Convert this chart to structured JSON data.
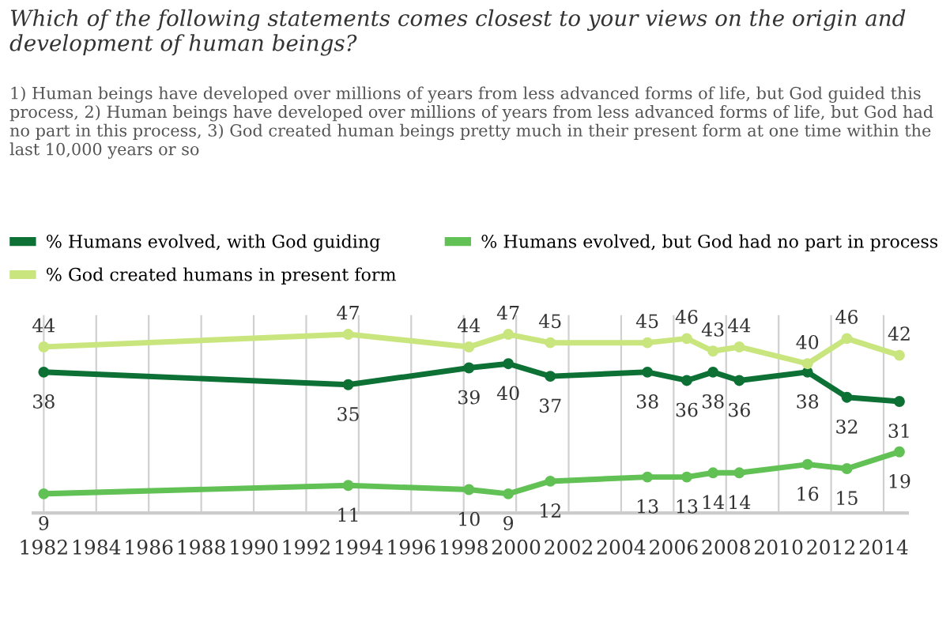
{
  "chart_data": {
    "type": "line",
    "title": "Which of the following statements comes closest to your views on the origin and development of human beings?",
    "subtitle": "1) Human beings have developed over millions of years from less advanced forms of life, but God guided this process, 2) Human beings have developed over millions of years from less advanced forms of life, but God had no part in this process, 3) God created human beings pretty much in their present form at one time within the last 10,000 years or so",
    "x": [
      1982.0,
      1993.6,
      1998.2,
      1999.7,
      2001.3,
      2005.0,
      2006.5,
      2007.5,
      2008.5,
      2011.1,
      2012.6,
      2014.6
    ],
    "series": [
      {
        "name": "% Humans evolved, with God guiding",
        "color": "#0d7034",
        "values": [
          38,
          35,
          39,
          40,
          37,
          38,
          36,
          38,
          36,
          38,
          32,
          31
        ]
      },
      {
        "name": "% Humans evolved, but God had no part in process",
        "color": "#62c155",
        "values": [
          9,
          11,
          10,
          9,
          12,
          13,
          13,
          14,
          14,
          16,
          15,
          19
        ]
      },
      {
        "name": "% God created humans in present form",
        "color": "#c9e57e",
        "values": [
          44,
          47,
          44,
          47,
          45,
          45,
          46,
          43,
          44,
          40,
          46,
          42
        ]
      }
    ],
    "xlim": [
      1981.6,
      2014.9
    ],
    "xticks": [
      1982,
      1984,
      1986,
      1988,
      1990,
      1992,
      1994,
      1996,
      1998,
      2000,
      2002,
      2004,
      2006,
      2008,
      2010,
      2012,
      2014
    ],
    "data_labels": true,
    "grid": "x",
    "legend": "top",
    "marker": "circle",
    "line_style": "solid"
  }
}
